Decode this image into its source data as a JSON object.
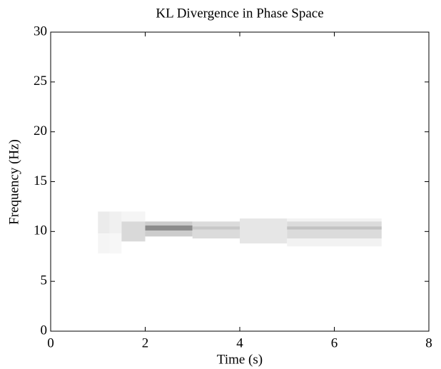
{
  "chart_data": {
    "type": "heatmap",
    "title": "KL Divergence in Phase Space",
    "xlabel": "Time (s)",
    "ylabel": "Frequency (Hz)",
    "xlim": [
      0,
      8
    ],
    "ylim": [
      0,
      30
    ],
    "xticks": [
      0,
      2,
      4,
      6,
      8
    ],
    "yticks": [
      0,
      5,
      10,
      15,
      20,
      25,
      30
    ],
    "clim": [
      0,
      1
    ],
    "colormap": [
      "#ffffff",
      "#000000"
    ],
    "cells": [
      {
        "x": [
          1,
          1.25
        ],
        "y": [
          9.8,
          12
        ],
        "value": 0.08
      },
      {
        "x": [
          1,
          1.25
        ],
        "y": [
          7.8,
          9.8
        ],
        "value": 0.04
      },
      {
        "x": [
          1.25,
          1.5
        ],
        "y": [
          9.8,
          12
        ],
        "value": 0.06
      },
      {
        "x": [
          1.25,
          1.5
        ],
        "y": [
          7.8,
          9.8
        ],
        "value": 0.03
      },
      {
        "x": [
          1.5,
          2
        ],
        "y": [
          11,
          12
        ],
        "value": 0.04
      },
      {
        "x": [
          1.5,
          2
        ],
        "y": [
          9,
          11
        ],
        "value": 0.15
      },
      {
        "x": [
          2,
          3
        ],
        "y": [
          9.5,
          11
        ],
        "value": 0.2
      },
      {
        "x": [
          2,
          3
        ],
        "y": [
          10.1,
          10.6
        ],
        "value": 0.45
      },
      {
        "x": [
          3,
          4
        ],
        "y": [
          9.3,
          11
        ],
        "value": 0.14
      },
      {
        "x": [
          3,
          4
        ],
        "y": [
          10.2,
          10.5
        ],
        "value": 0.22
      },
      {
        "x": [
          4,
          5
        ],
        "y": [
          8.8,
          11.3
        ],
        "value": 0.1
      },
      {
        "x": [
          5,
          7
        ],
        "y": [
          8.5,
          11.3
        ],
        "value": 0.05
      },
      {
        "x": [
          5,
          7
        ],
        "y": [
          9.3,
          11
        ],
        "value": 0.14
      },
      {
        "x": [
          5,
          7
        ],
        "y": [
          10.2,
          10.5
        ],
        "value": 0.24
      }
    ]
  }
}
